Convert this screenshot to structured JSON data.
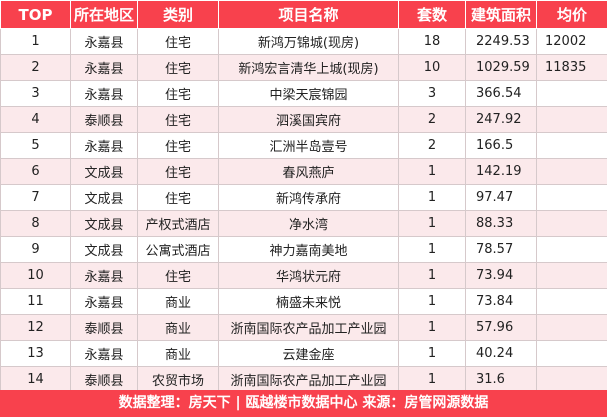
{
  "table": {
    "headers": [
      "TOP",
      "所在地区",
      "类别",
      "项目名称",
      "套数",
      "建筑面积",
      "均价"
    ],
    "rows": [
      [
        "1",
        "永嘉县",
        "住宅",
        "新鸿万锦城(现房)",
        "18",
        "2249.53",
        "12002"
      ],
      [
        "2",
        "永嘉县",
        "住宅",
        "新鸿宏言清华上城(现房)",
        "10",
        "1029.59",
        "11835"
      ],
      [
        "3",
        "永嘉县",
        "住宅",
        "中梁天宸锦园",
        "3",
        "366.54",
        ""
      ],
      [
        "4",
        "泰顺县",
        "住宅",
        "泗溪国宾府",
        "2",
        "247.92",
        ""
      ],
      [
        "5",
        "永嘉县",
        "住宅",
        "汇洲半岛壹号",
        "2",
        "166.5",
        ""
      ],
      [
        "6",
        "文成县",
        "住宅",
        "春风燕庐",
        "1",
        "142.19",
        ""
      ],
      [
        "7",
        "文成县",
        "住宅",
        "新鸿传承府",
        "1",
        "97.47",
        ""
      ],
      [
        "8",
        "文成县",
        "产权式酒店",
        "净水湾",
        "1",
        "88.33",
        ""
      ],
      [
        "9",
        "文成县",
        "公寓式酒店",
        "神力嘉南美地",
        "1",
        "78.57",
        ""
      ],
      [
        "10",
        "永嘉县",
        "住宅",
        "华鸿状元府",
        "1",
        "73.94",
        ""
      ],
      [
        "11",
        "永嘉县",
        "商业",
        "楠盛未来悦",
        "1",
        "73.84",
        ""
      ],
      [
        "12",
        "泰顺县",
        "商业",
        "浙南国际农产品加工产业园",
        "1",
        "57.96",
        ""
      ],
      [
        "13",
        "永嘉县",
        "商业",
        "云建金座",
        "1",
        "40.24",
        ""
      ],
      [
        "14",
        "泰顺县",
        "农贸市场",
        "浙南国际农产品加工产业园",
        "1",
        "31.6",
        ""
      ]
    ]
  },
  "footer": {
    "text": "数据整理：房天下 | 瓯越楼市数据中心   来源：房管网源数据"
  }
}
